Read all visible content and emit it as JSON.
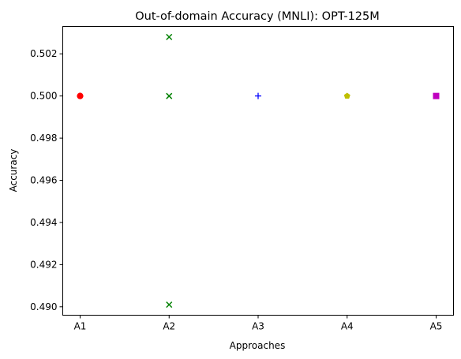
{
  "chart_data": {
    "type": "scatter",
    "title": "Out-of-domain Accuracy (MNLI): OPT-125M",
    "xlabel": "Approaches",
    "ylabel": "Accuracy",
    "categories": [
      "A1",
      "A2",
      "A3",
      "A4",
      "A5"
    ],
    "ylim": [
      0.4896,
      0.5033
    ],
    "yticks": [
      "0.490",
      "0.492",
      "0.494",
      "0.496",
      "0.498",
      "0.500",
      "0.502"
    ],
    "grid": false,
    "series": [
      {
        "category": "A1",
        "marker": "circle",
        "color": "#ff0000",
        "values": [
          0.5,
          0.5,
          0.5
        ]
      },
      {
        "category": "A2",
        "marker": "x",
        "color": "#008000",
        "values": [
          0.5028,
          0.5,
          0.4901
        ]
      },
      {
        "category": "A3",
        "marker": "plus",
        "color": "#0000ff",
        "values": [
          0.5
        ]
      },
      {
        "category": "A4",
        "marker": "pentagon",
        "color": "#bfbf00",
        "values": [
          0.5
        ]
      },
      {
        "category": "A5",
        "marker": "square",
        "color": "#bf00bf",
        "values": [
          0.5
        ]
      }
    ]
  }
}
